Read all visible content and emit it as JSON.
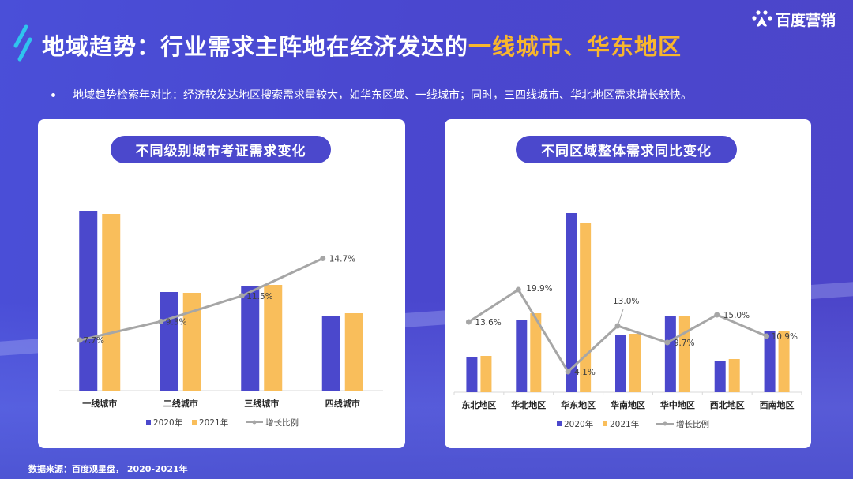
{
  "header": {
    "title_main": "地域趋势：行业需求主阵地在经济发达的",
    "title_highlight": "一线城市、华东地区",
    "logo_text": "百度营销",
    "bullet": "地域趋势检索年对比：经济较发达地区搜索需求量较大，如华东区域、一线城市；同时，三四线城市、华北地区需求增长较快。"
  },
  "colors": {
    "background": "#4a4bd2",
    "series_2020": "#4b48cc",
    "series_2021": "#f9be5b",
    "growth_line": "#a6a6a6",
    "highlight": "#f8b62d"
  },
  "footer": {
    "source": "数据来源：百度观星盘， 2020-2021年"
  },
  "legend": {
    "s2020": "2020年",
    "s2021": "2021年",
    "growth": "增长比例"
  },
  "chart_data": [
    {
      "type": "bar",
      "title": "不同级别城市考证需求变化",
      "categories": [
        "一线城市",
        "二线城市",
        "三线城市",
        "四线城市"
      ],
      "series": [
        {
          "name": "2020年",
          "values": [
            228,
            125,
            132,
            94
          ]
        },
        {
          "name": "2021年",
          "values": [
            224,
            124,
            134,
            98
          ]
        },
        {
          "name": "增长比例",
          "type": "line",
          "values": [
            7.7,
            9.3,
            11.5,
            14.7
          ],
          "labels": [
            "7.7%",
            "9.3%",
            "11.5%",
            "14.7%"
          ]
        }
      ],
      "xlabel": "",
      "ylabel": "",
      "bar_units": "relative (pixel height, no axis shown)",
      "legend_position": "bottom",
      "grid": false
    },
    {
      "type": "bar",
      "title": "不同区域整体需求同比变化",
      "categories": [
        "东北地区",
        "华北地区",
        "华东地区",
        "华南地区",
        "华中地区",
        "西北地区",
        "西南地区"
      ],
      "series": [
        {
          "name": "2020年",
          "values": [
            44,
            92,
            227,
            72,
            97,
            40,
            78
          ]
        },
        {
          "name": "2021年",
          "values": [
            46,
            100,
            214,
            74,
            97,
            42,
            78
          ]
        },
        {
          "name": "增长比例",
          "type": "line",
          "values": [
            13.6,
            19.9,
            4.1,
            13.0,
            9.7,
            15.0,
            10.9
          ],
          "labels": [
            "13.6%",
            "19.9%",
            "4.1%",
            "13.0%",
            "9.7%",
            "15.0%",
            "10.9%"
          ]
        }
      ],
      "xlabel": "",
      "ylabel": "",
      "bar_units": "relative (pixel height, no axis shown)",
      "legend_position": "bottom",
      "grid": false
    }
  ]
}
